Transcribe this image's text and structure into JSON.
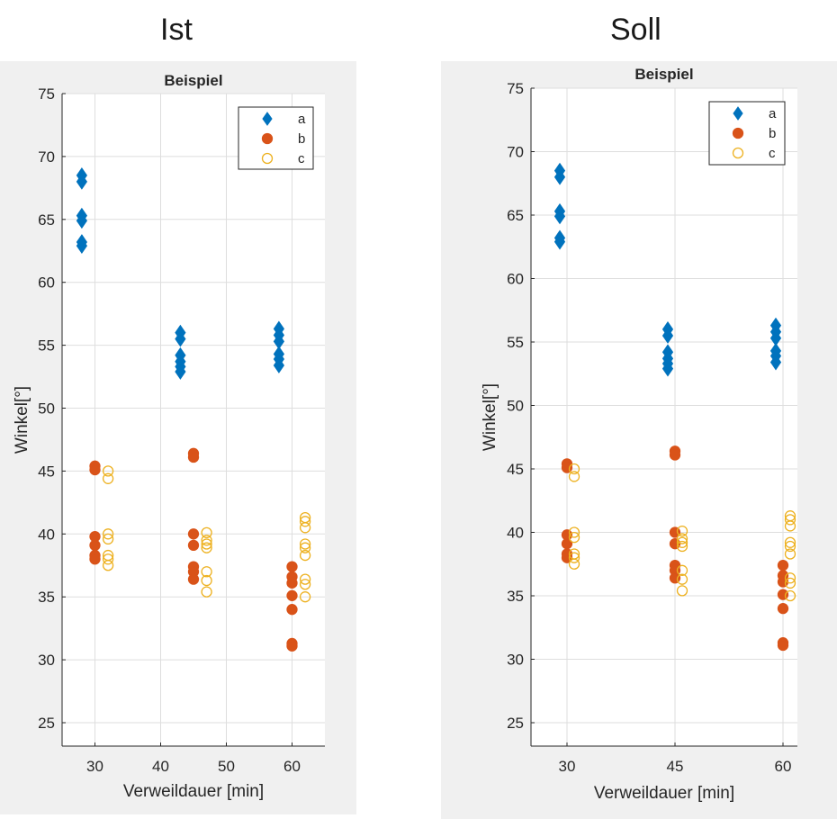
{
  "headings": {
    "left": "Ist",
    "right": "Soll"
  },
  "chart_data": [
    {
      "type": "scatter",
      "title": "Beispiel",
      "xlabel": "Verweildauer [min]",
      "ylabel": "Winkel[°]",
      "xlim": [
        25,
        65
      ],
      "ylim": [
        23,
        75
      ],
      "xticks": [
        30,
        40,
        50,
        60
      ],
      "xtick_labels": [
        "30",
        "40",
        "50",
        "60"
      ],
      "yticks": [
        25,
        30,
        35,
        40,
        45,
        50,
        55,
        60,
        65,
        70,
        75
      ],
      "ytick_labels": [
        "25",
        "30",
        "35",
        "40",
        "45",
        "50",
        "55",
        "60",
        "65",
        "70",
        "75"
      ],
      "grid": true,
      "legend": "top-right",
      "series": [
        {
          "name": "a",
          "marker": "diamond",
          "filled": true,
          "color": "#0072BD",
          "points": [
            [
              28,
              68.5
            ],
            [
              28,
              68.0
            ],
            [
              28,
              65.3
            ],
            [
              28,
              64.9
            ],
            [
              28,
              63.2
            ],
            [
              28,
              62.9
            ],
            [
              43,
              56.0
            ],
            [
              43,
              55.5
            ],
            [
              43,
              54.2
            ],
            [
              43,
              53.7
            ],
            [
              43,
              53.3
            ],
            [
              43,
              52.9
            ],
            [
              58,
              56.3
            ],
            [
              58,
              55.8
            ],
            [
              58,
              55.3
            ],
            [
              58,
              54.3
            ],
            [
              58,
              53.9
            ],
            [
              58,
              53.4
            ]
          ]
        },
        {
          "name": "b",
          "marker": "circle",
          "filled": true,
          "color": "#D95319",
          "points": [
            [
              30,
              45.4
            ],
            [
              30,
              45.1
            ],
            [
              30,
              39.8
            ],
            [
              30,
              39.1
            ],
            [
              30,
              38.3
            ],
            [
              30,
              38.0
            ],
            [
              45,
              46.4
            ],
            [
              45,
              46.1
            ],
            [
              45,
              40.0
            ],
            [
              45,
              39.1
            ],
            [
              45,
              37.4
            ],
            [
              45,
              37.0
            ],
            [
              45,
              36.4
            ],
            [
              60,
              37.4
            ],
            [
              60,
              36.6
            ],
            [
              60,
              36.1
            ],
            [
              60,
              35.1
            ],
            [
              60,
              34.0
            ],
            [
              60,
              31.3
            ],
            [
              60,
              31.1
            ]
          ]
        },
        {
          "name": "c",
          "marker": "circle",
          "filled": false,
          "color": "#EDB120",
          "points": [
            [
              32,
              45.0
            ],
            [
              32,
              44.4
            ],
            [
              32,
              40.0
            ],
            [
              32,
              39.6
            ],
            [
              32,
              38.3
            ],
            [
              32,
              38.0
            ],
            [
              32,
              37.5
            ],
            [
              47,
              40.1
            ],
            [
              47,
              39.5
            ],
            [
              47,
              39.2
            ],
            [
              47,
              38.9
            ],
            [
              47,
              37.0
            ],
            [
              47,
              36.3
            ],
            [
              47,
              35.4
            ],
            [
              62,
              41.3
            ],
            [
              62,
              41.0
            ],
            [
              62,
              40.5
            ],
            [
              62,
              39.2
            ],
            [
              62,
              38.9
            ],
            [
              62,
              38.3
            ],
            [
              62,
              36.4
            ],
            [
              62,
              36.0
            ],
            [
              62,
              35.0
            ]
          ]
        }
      ]
    },
    {
      "type": "scatter",
      "title": "Beispiel",
      "xlabel": "Verweildauer [min]",
      "ylabel": "Winkel[°]",
      "xlim": [
        25,
        62
      ],
      "ylim": [
        23,
        75
      ],
      "xticks": [
        30,
        45,
        60
      ],
      "xtick_labels": [
        "30",
        "45",
        "60"
      ],
      "yticks": [
        25,
        30,
        35,
        40,
        45,
        50,
        55,
        60,
        65,
        70,
        75
      ],
      "ytick_labels": [
        "25",
        "30",
        "35",
        "40",
        "45",
        "50",
        "55",
        "60",
        "65",
        "70",
        "75"
      ],
      "grid": true,
      "legend": "top-right",
      "series": [
        {
          "name": "a",
          "marker": "diamond",
          "filled": true,
          "color": "#0072BD",
          "points": [
            [
              29,
              68.5
            ],
            [
              29,
              68.0
            ],
            [
              29,
              65.3
            ],
            [
              29,
              64.9
            ],
            [
              29,
              63.2
            ],
            [
              29,
              62.9
            ],
            [
              44,
              56.0
            ],
            [
              44,
              55.5
            ],
            [
              44,
              54.2
            ],
            [
              44,
              53.7
            ],
            [
              44,
              53.3
            ],
            [
              44,
              52.9
            ],
            [
              59,
              56.3
            ],
            [
              59,
              55.8
            ],
            [
              59,
              55.3
            ],
            [
              59,
              54.3
            ],
            [
              59,
              53.9
            ],
            [
              59,
              53.4
            ]
          ]
        },
        {
          "name": "b",
          "marker": "circle",
          "filled": true,
          "color": "#D95319",
          "points": [
            [
              30,
              45.4
            ],
            [
              30,
              45.1
            ],
            [
              30,
              39.8
            ],
            [
              30,
              39.1
            ],
            [
              30,
              38.3
            ],
            [
              30,
              38.0
            ],
            [
              45,
              46.4
            ],
            [
              45,
              46.1
            ],
            [
              45,
              40.0
            ],
            [
              45,
              39.1
            ],
            [
              45,
              37.4
            ],
            [
              45,
              37.0
            ],
            [
              45,
              36.4
            ],
            [
              60,
              37.4
            ],
            [
              60,
              36.6
            ],
            [
              60,
              36.1
            ],
            [
              60,
              35.1
            ],
            [
              60,
              34.0
            ],
            [
              60,
              31.3
            ],
            [
              60,
              31.1
            ]
          ]
        },
        {
          "name": "c",
          "marker": "circle",
          "filled": false,
          "color": "#EDB120",
          "points": [
            [
              31,
              45.0
            ],
            [
              31,
              44.4
            ],
            [
              31,
              40.0
            ],
            [
              31,
              39.6
            ],
            [
              31,
              38.3
            ],
            [
              31,
              38.0
            ],
            [
              31,
              37.5
            ],
            [
              46,
              40.1
            ],
            [
              46,
              39.5
            ],
            [
              46,
              39.2
            ],
            [
              46,
              38.9
            ],
            [
              46,
              37.0
            ],
            [
              46,
              36.3
            ],
            [
              46,
              35.4
            ],
            [
              61,
              41.3
            ],
            [
              61,
              41.0
            ],
            [
              61,
              40.5
            ],
            [
              61,
              39.2
            ],
            [
              61,
              38.9
            ],
            [
              61,
              38.3
            ],
            [
              61,
              36.4
            ],
            [
              61,
              36.0
            ],
            [
              61,
              35.0
            ]
          ]
        }
      ]
    }
  ]
}
